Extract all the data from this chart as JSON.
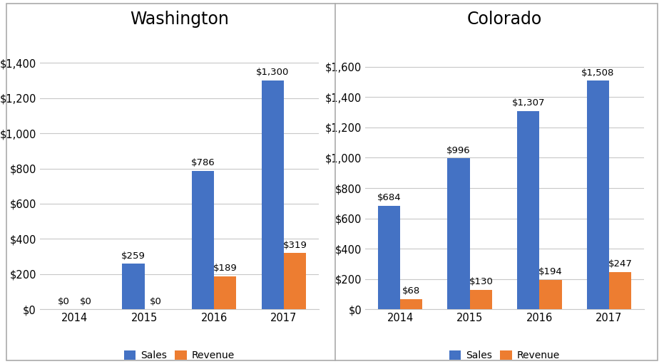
{
  "washington": {
    "title": "Washington",
    "years": [
      "2014",
      "2015",
      "2016",
      "2017"
    ],
    "sales": [
      0,
      259,
      786,
      1300
    ],
    "revenue": [
      0,
      0,
      189,
      319
    ],
    "ylim": [
      0,
      1550
    ],
    "yticks": [
      0,
      200,
      400,
      600,
      800,
      1000,
      1200,
      1400
    ],
    "sales_labels": [
      "$0",
      "$259",
      "$786",
      "$1,300"
    ],
    "revenue_labels": [
      "$0",
      "$0",
      "$189",
      "$319"
    ]
  },
  "colorado": {
    "title": "Colorado",
    "years": [
      "2014",
      "2015",
      "2016",
      "2017"
    ],
    "sales": [
      684,
      996,
      1307,
      1508
    ],
    "revenue": [
      68,
      130,
      194,
      247
    ],
    "ylim": [
      0,
      1800
    ],
    "yticks": [
      0,
      200,
      400,
      600,
      800,
      1000,
      1200,
      1400,
      1600
    ],
    "sales_labels": [
      "$684",
      "$996",
      "$1,307",
      "$1,508"
    ],
    "revenue_labels": [
      "$68",
      "$130",
      "$194",
      "$247"
    ]
  },
  "bar_color_sales": "#4472C4",
  "bar_color_revenue": "#ED7D31",
  "background_color": "#FFFFFF",
  "title_fontsize": 17,
  "label_fontsize": 9.5,
  "tick_fontsize": 10.5,
  "bar_width": 0.32,
  "legend_labels": [
    "Sales",
    "Revenue"
  ],
  "grid_color": "#C8C8C8",
  "divider_color": "#AAAAAA"
}
